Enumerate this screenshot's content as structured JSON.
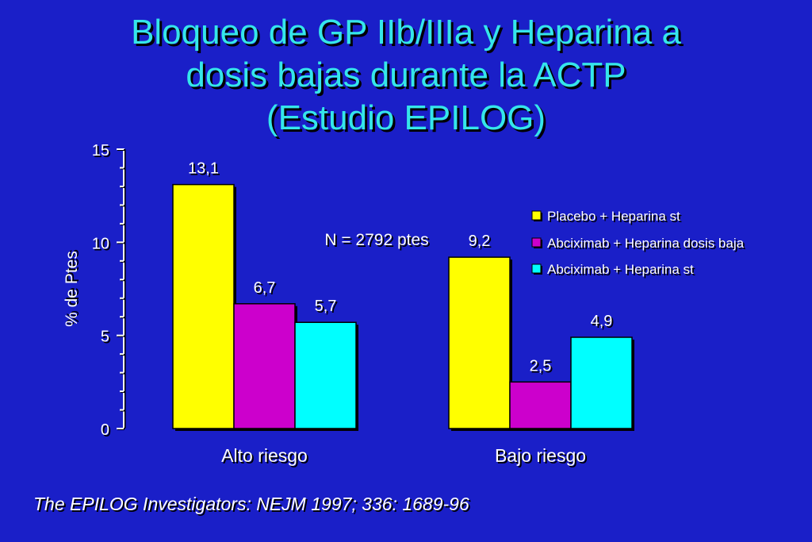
{
  "slide": {
    "title_lines": [
      "Bloqueo de GP IIb/IIIa y Heparina a",
      "dosis bajas durante la ACTP",
      "(Estudio EPILOG)"
    ],
    "citation": "The EPILOG Investigators: NEJM 1997; 336: 1689-96"
  },
  "chart_data": {
    "type": "bar",
    "categories": [
      "Alto riesgo",
      "Bajo riesgo"
    ],
    "series": [
      {
        "name": "Placebo + Heparina st",
        "values": [
          13.1,
          9.2
        ],
        "labels": [
          "13,1",
          "9,2"
        ],
        "color": "#ffff00"
      },
      {
        "name": "Abciximab + Heparina dosis baja",
        "values": [
          6.7,
          2.5
        ],
        "labels": [
          "6,7",
          "2,5"
        ],
        "color": "#cc00cc"
      },
      {
        "name": "Abciximab + Heparina st",
        "values": [
          5.7,
          4.9
        ],
        "labels": [
          "5,7",
          "4,9"
        ],
        "color": "#00ffff"
      }
    ],
    "ylabel": "% de Ptes",
    "xlabel": "",
    "ylim": [
      0,
      15
    ],
    "yticks": [
      0,
      5,
      10,
      15
    ],
    "annotation": "N = 2792 ptes",
    "legend_position": "top-right",
    "grid": false
  }
}
